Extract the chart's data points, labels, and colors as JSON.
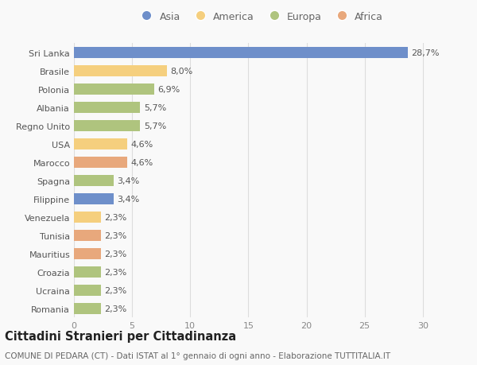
{
  "countries": [
    "Sri Lanka",
    "Brasile",
    "Polonia",
    "Albania",
    "Regno Unito",
    "USA",
    "Marocco",
    "Spagna",
    "Filippine",
    "Venezuela",
    "Tunisia",
    "Mauritius",
    "Croazia",
    "Ucraina",
    "Romania"
  ],
  "values": [
    28.7,
    8.0,
    6.9,
    5.7,
    5.7,
    4.6,
    4.6,
    3.4,
    3.4,
    2.3,
    2.3,
    2.3,
    2.3,
    2.3,
    2.3
  ],
  "labels": [
    "28,7%",
    "8,0%",
    "6,9%",
    "5,7%",
    "5,7%",
    "4,6%",
    "4,6%",
    "3,4%",
    "3,4%",
    "2,3%",
    "2,3%",
    "2,3%",
    "2,3%",
    "2,3%",
    "2,3%"
  ],
  "continents": [
    "Asia",
    "America",
    "Europa",
    "Europa",
    "Europa",
    "America",
    "Africa",
    "Europa",
    "Asia",
    "America",
    "Africa",
    "Africa",
    "Europa",
    "Europa",
    "Europa"
  ],
  "colors": {
    "Asia": "#6e8fca",
    "America": "#f5cf7e",
    "Europa": "#afc47e",
    "Africa": "#e8a87c"
  },
  "title": "Cittadini Stranieri per Cittadinanza",
  "subtitle": "COMUNE DI PEDARA (CT) - Dati ISTAT al 1° gennaio di ogni anno - Elaborazione TUTTITALIA.IT",
  "xlim": [
    0,
    32
  ],
  "xticks": [
    0,
    5,
    10,
    15,
    20,
    25,
    30
  ],
  "background_color": "#f9f9f9",
  "bar_height": 0.6,
  "label_fontsize": 8,
  "title_fontsize": 10.5,
  "subtitle_fontsize": 7.5,
  "ytick_fontsize": 8,
  "xtick_fontsize": 8,
  "legend_entries": [
    "Asia",
    "America",
    "Europa",
    "Africa"
  ]
}
